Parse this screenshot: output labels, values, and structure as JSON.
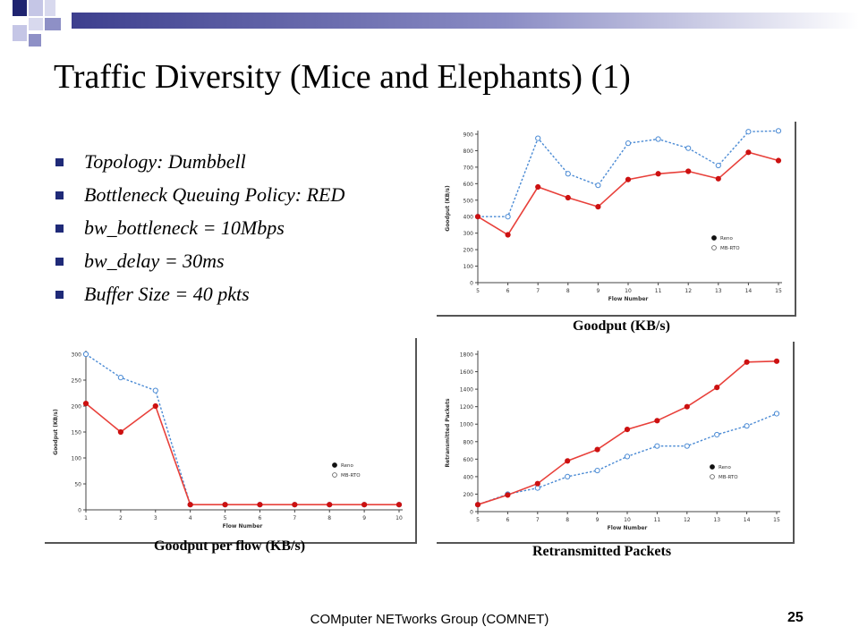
{
  "slide": {
    "title": "Traffic Diversity (Mice and Elephants) (1)",
    "bullets": [
      "Topology: Dumbbell",
      "Bottleneck Queuing Policy: RED",
      "bw_bottleneck = 10Mbps",
      "bw_delay = 30ms",
      "Buffer Size = 40 pkts"
    ],
    "footer": "COMputer NETworks Group (COMNET)",
    "page_number": "25",
    "colors": {
      "reno": "#e8403a",
      "mbrto": "#4a8ad4",
      "bullet": "#1f2a78",
      "accent": "#3d3f8e"
    }
  },
  "chart_data": [
    {
      "type": "line",
      "caption": "Goodput (KB/s)",
      "xlabel": "Flow Number",
      "ylabel": "Goodput (KB/s)",
      "x": [
        5,
        6,
        7,
        8,
        9,
        10,
        11,
        12,
        13,
        14,
        15
      ],
      "xlim": [
        5,
        15
      ],
      "ylim": [
        0,
        900
      ],
      "yticks": [
        0,
        100,
        200,
        300,
        400,
        500,
        600,
        700,
        800,
        900
      ],
      "legend": "right",
      "series": [
        {
          "name": "Reno",
          "values": [
            400,
            290,
            580,
            515,
            460,
            625,
            660,
            675,
            630,
            790,
            740
          ]
        },
        {
          "name": "MB-RTO",
          "values": [
            400,
            400,
            875,
            660,
            590,
            845,
            870,
            815,
            710,
            915,
            920
          ]
        }
      ]
    },
    {
      "type": "line",
      "caption": "Goodput per flow (KB/s)",
      "xlabel": "Flow Number",
      "ylabel": "Goodput (KB/s)",
      "x": [
        1,
        2,
        3,
        4,
        5,
        6,
        7,
        8,
        9,
        10
      ],
      "xlim": [
        1,
        10
      ],
      "ylim": [
        0,
        300
      ],
      "yticks": [
        0,
        50,
        100,
        150,
        200,
        250,
        300
      ],
      "legend": "right",
      "series": [
        {
          "name": "Reno",
          "values": [
            205,
            150,
            200,
            10,
            10,
            10,
            10,
            10,
            10,
            10
          ]
        },
        {
          "name": "MB-RTO",
          "values": [
            300,
            255,
            230,
            10,
            10,
            10,
            10,
            10,
            10,
            10
          ]
        }
      ]
    },
    {
      "type": "line",
      "caption": "Retransmitted Packets",
      "xlabel": "Flow Number",
      "ylabel": "Retransmitted Packets",
      "x": [
        5,
        6,
        7,
        8,
        9,
        10,
        11,
        12,
        13,
        14,
        15
      ],
      "xlim": [
        5,
        15
      ],
      "ylim": [
        0,
        1800
      ],
      "yticks": [
        0,
        200,
        400,
        600,
        800,
        1000,
        1200,
        1400,
        1600,
        1800
      ],
      "legend": "right",
      "series": [
        {
          "name": "Reno",
          "values": [
            80,
            190,
            320,
            580,
            710,
            940,
            1040,
            1200,
            1420,
            1710,
            1720
          ]
        },
        {
          "name": "MB-RTO",
          "values": [
            80,
            200,
            270,
            400,
            470,
            630,
            750,
            750,
            880,
            980,
            1120
          ]
        }
      ]
    }
  ]
}
